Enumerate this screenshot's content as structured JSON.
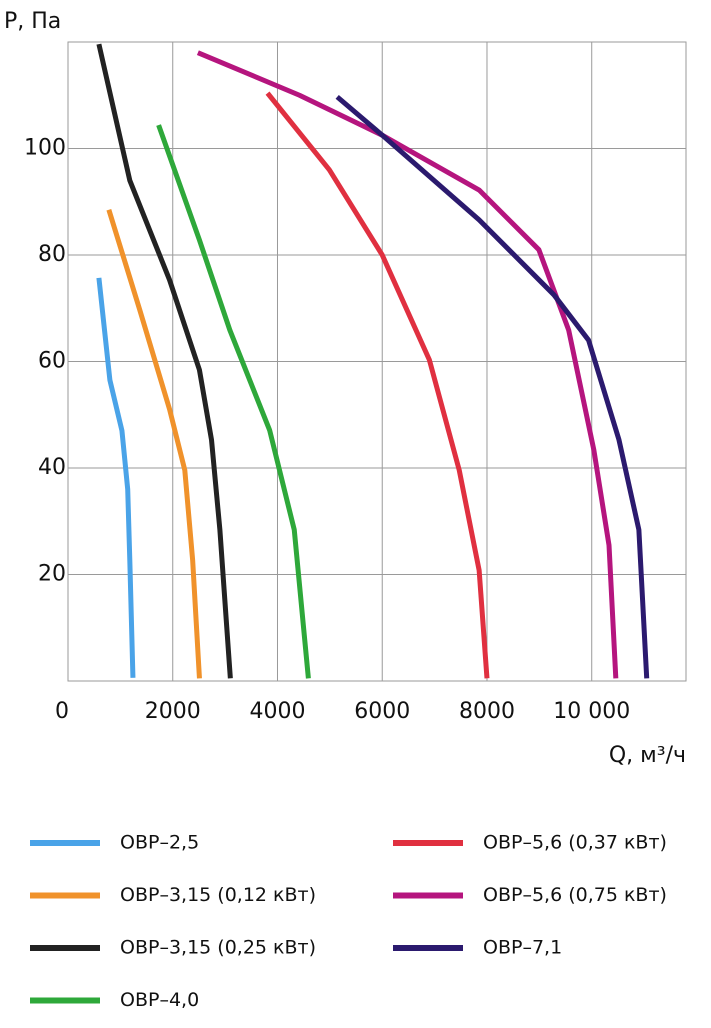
{
  "chart_data": {
    "type": "line",
    "ylabel": "P, Па",
    "xlabel": "Q, м³/ч",
    "xlim": [
      0,
      11800
    ],
    "ylim": [
      0,
      120
    ],
    "xticks": [
      0,
      2000,
      4000,
      6000,
      8000,
      {
        "value": 10000,
        "label": "10 000"
      }
    ],
    "yticks": [
      20,
      40,
      60,
      80,
      100
    ],
    "grid": true,
    "series": [
      {
        "name": "ОВР–2,5",
        "color": "#4aa3e8",
        "x": [
          590,
          800,
          1030,
          1140,
          1180,
          1240
        ],
        "values": [
          75.7,
          56.5,
          47,
          36,
          22.7,
          0.6
        ]
      },
      {
        "name": "ОВР–3,15 (0,12 кВт)",
        "color": "#f0922b",
        "x": [
          780,
          1370,
          1940,
          2230,
          2380,
          2510
        ],
        "values": [
          88.5,
          69.7,
          51,
          39.6,
          22.7,
          0.5
        ]
      },
      {
        "name": "ОВР–3,15 (0,25 кВт)",
        "color": "#222222",
        "x": [
          590,
          1180,
          1940,
          2510,
          2740,
          2900,
          3100
        ],
        "values": [
          119.6,
          94,
          75.3,
          58.4,
          45.3,
          28.4,
          0.5
        ]
      },
      {
        "name": "ОВР–4,0",
        "color": "#2ea83a",
        "x": [
          1730,
          2510,
          3090,
          3850,
          4320,
          4590
        ],
        "values": [
          104.4,
          82.8,
          65.9,
          47.1,
          28.4,
          0.5
        ]
      },
      {
        "name": "ОВР–5,6 (0,37 кВт)",
        "color": "#e03040",
        "x": [
          3810,
          4990,
          6000,
          6900,
          7470,
          7850,
          8000
        ],
        "values": [
          110.4,
          96,
          80,
          60.3,
          39.6,
          20.8,
          0.5
        ]
      },
      {
        "name": "ОВР–5,6 (0,75 кВт)",
        "color": "#b5157e",
        "x": [
          2480,
          4420,
          6000,
          7850,
          8990,
          9560,
          10040,
          10330,
          10460
        ],
        "values": [
          118,
          110,
          102.5,
          92.2,
          81,
          65.9,
          43.4,
          25.5,
          0.5
        ]
      },
      {
        "name": "ОВР–7,1",
        "color": "#2b1a6e",
        "x": [
          5140,
          6000,
          7850,
          9280,
          9940,
          10520,
          10900,
          11050
        ],
        "values": [
          109.7,
          102.5,
          86.6,
          72.5,
          64,
          45.3,
          28.4,
          0.5
        ]
      }
    ]
  }
}
